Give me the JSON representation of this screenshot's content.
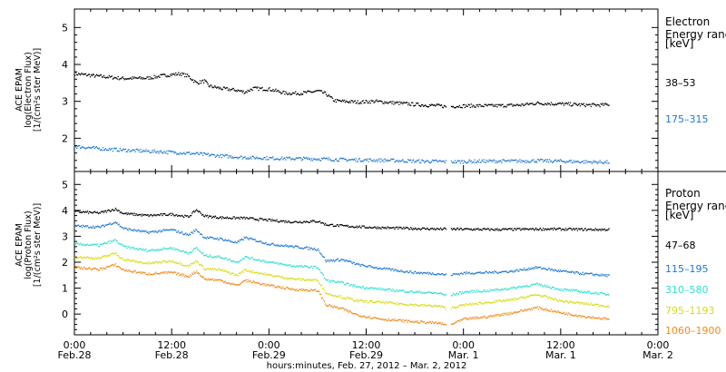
{
  "chart_data": [
    {
      "type": "scatter",
      "panel": "electron",
      "ylabel_lines": [
        "ACE EPAM",
        "log(Electron Flux)",
        "[1/(cm²s ster MeV)]"
      ],
      "ylim": [
        1.1,
        5.5
      ],
      "yticks": [
        2,
        3,
        4,
        5
      ],
      "legend_title_lines": [
        "Electron",
        "Energy range",
        "[keV]"
      ],
      "series": [
        {
          "name": "38–53",
          "color": "#000000",
          "points": [
            [
              0,
              3.75
            ],
            [
              3,
              3.68
            ],
            [
              6,
              3.62
            ],
            [
              9,
              3.63
            ],
            [
              11,
              3.7
            ],
            [
              13,
              3.75
            ],
            [
              14,
              3.68
            ],
            [
              15,
              3.5
            ],
            [
              16,
              3.55
            ],
            [
              16.5,
              3.42
            ],
            [
              18,
              3.35
            ],
            [
              20,
              3.3
            ],
            [
              21,
              3.25
            ],
            [
              22,
              3.35
            ],
            [
              24,
              3.33
            ],
            [
              26,
              3.22
            ],
            [
              28,
              3.22
            ],
            [
              30,
              3.28
            ],
            [
              31,
              3.2
            ],
            [
              32,
              3.02
            ],
            [
              33,
              3.0
            ],
            [
              35,
              2.98
            ],
            [
              37,
              3.0
            ],
            [
              40,
              2.95
            ],
            [
              43,
              2.9
            ],
            [
              45,
              2.88
            ],
            [
              46,
              2.85
            ],
            [
              47,
              2.87
            ],
            [
              49,
              2.88
            ],
            [
              52,
              2.88
            ],
            [
              55,
              2.9
            ],
            [
              57,
              2.95
            ],
            [
              60,
              2.93
            ],
            [
              63,
              2.9
            ],
            [
              65,
              2.9
            ],
            [
              66,
              2.92
            ]
          ]
        },
        {
          "name": "175–315",
          "color": "#1e77d2",
          "points": [
            [
              0,
              1.78
            ],
            [
              3,
              1.72
            ],
            [
              6,
              1.68
            ],
            [
              9,
              1.65
            ],
            [
              12,
              1.62
            ],
            [
              15,
              1.58
            ],
            [
              18,
              1.52
            ],
            [
              21,
              1.48
            ],
            [
              24,
              1.46
            ],
            [
              27,
              1.45
            ],
            [
              30,
              1.44
            ],
            [
              33,
              1.42
            ],
            [
              36,
              1.41
            ],
            [
              39,
              1.4
            ],
            [
              42,
              1.38
            ],
            [
              45,
              1.37
            ],
            [
              46,
              1.36
            ],
            [
              48,
              1.37
            ],
            [
              51,
              1.38
            ],
            [
              54,
              1.38
            ],
            [
              57,
              1.39
            ],
            [
              60,
              1.38
            ],
            [
              63,
              1.36
            ],
            [
              66,
              1.35
            ]
          ]
        }
      ]
    },
    {
      "type": "scatter",
      "panel": "proton",
      "ylabel_lines": [
        "ACE EPAM",
        "log(Proton Flux)",
        "[1/(cm²s ster MeV)]"
      ],
      "ylim": [
        -0.8,
        5.5
      ],
      "yticks": [
        0,
        1,
        2,
        3,
        4,
        5
      ],
      "legend_title_lines": [
        "Proton",
        "Energy range",
        "[keV]"
      ],
      "series": [
        {
          "name": "47–68",
          "color": "#000000",
          "points": [
            [
              0,
              3.95
            ],
            [
              3,
              3.9
            ],
            [
              5,
              4.05
            ],
            [
              6,
              3.88
            ],
            [
              9,
              3.8
            ],
            [
              12,
              3.85
            ],
            [
              14,
              3.75
            ],
            [
              15,
              4.02
            ],
            [
              16,
              3.78
            ],
            [
              18,
              3.72
            ],
            [
              21,
              3.7
            ],
            [
              24,
              3.62
            ],
            [
              27,
              3.55
            ],
            [
              30,
              3.58
            ],
            [
              31,
              3.45
            ],
            [
              33,
              3.4
            ],
            [
              36,
              3.35
            ],
            [
              39,
              3.32
            ],
            [
              42,
              3.3
            ],
            [
              45,
              3.28
            ],
            [
              46,
              3.28
            ],
            [
              49,
              3.27
            ],
            [
              52,
              3.26
            ],
            [
              55,
              3.27
            ],
            [
              58,
              3.28
            ],
            [
              61,
              3.27
            ],
            [
              64,
              3.26
            ],
            [
              66,
              3.26
            ]
          ]
        },
        {
          "name": "115–195",
          "color": "#1e77d2",
          "points": [
            [
              0,
              3.4
            ],
            [
              3,
              3.35
            ],
            [
              5,
              3.55
            ],
            [
              6,
              3.3
            ],
            [
              9,
              3.15
            ],
            [
              12,
              3.25
            ],
            [
              14,
              3.05
            ],
            [
              15,
              3.25
            ],
            [
              16,
              2.95
            ],
            [
              18,
              2.9
            ],
            [
              20,
              2.75
            ],
            [
              21,
              2.95
            ],
            [
              24,
              2.7
            ],
            [
              27,
              2.6
            ],
            [
              30,
              2.5
            ],
            [
              31,
              2.05
            ],
            [
              33,
              2.1
            ],
            [
              35,
              1.9
            ],
            [
              38,
              1.75
            ],
            [
              42,
              1.6
            ],
            [
              45,
              1.55
            ],
            [
              46,
              1.5
            ],
            [
              48,
              1.58
            ],
            [
              51,
              1.6
            ],
            [
              54,
              1.65
            ],
            [
              57,
              1.8
            ],
            [
              60,
              1.65
            ],
            [
              63,
              1.55
            ],
            [
              66,
              1.48
            ]
          ]
        },
        {
          "name": "310–580",
          "color": "#2fe0d0",
          "points": [
            [
              0,
              2.7
            ],
            [
              3,
              2.65
            ],
            [
              5,
              2.85
            ],
            [
              6,
              2.6
            ],
            [
              9,
              2.45
            ],
            [
              12,
              2.55
            ],
            [
              14,
              2.35
            ],
            [
              15,
              2.55
            ],
            [
              16,
              2.25
            ],
            [
              18,
              2.2
            ],
            [
              20,
              2.0
            ],
            [
              21,
              2.2
            ],
            [
              24,
              2.0
            ],
            [
              27,
              1.85
            ],
            [
              30,
              1.8
            ],
            [
              31,
              1.3
            ],
            [
              33,
              1.2
            ],
            [
              35,
              1.05
            ],
            [
              38,
              0.95
            ],
            [
              42,
              0.85
            ],
            [
              45,
              0.8
            ],
            [
              46,
              0.7
            ],
            [
              48,
              0.85
            ],
            [
              51,
              0.9
            ],
            [
              54,
              1.0
            ],
            [
              57,
              1.15
            ],
            [
              60,
              0.95
            ],
            [
              63,
              0.85
            ],
            [
              66,
              0.75
            ]
          ]
        },
        {
          "name": "795–1193",
          "color": "#d8dc10",
          "points": [
            [
              0,
              2.2
            ],
            [
              3,
              2.15
            ],
            [
              5,
              2.35
            ],
            [
              6,
              2.1
            ],
            [
              9,
              1.95
            ],
            [
              12,
              2.05
            ],
            [
              14,
              1.85
            ],
            [
              15,
              2.05
            ],
            [
              16,
              1.75
            ],
            [
              18,
              1.7
            ],
            [
              20,
              1.5
            ],
            [
              21,
              1.7
            ],
            [
              24,
              1.5
            ],
            [
              27,
              1.35
            ],
            [
              30,
              1.3
            ],
            [
              31,
              0.8
            ],
            [
              33,
              0.65
            ],
            [
              35,
              0.5
            ],
            [
              38,
              0.45
            ],
            [
              42,
              0.35
            ],
            [
              45,
              0.3
            ],
            [
              46,
              0.2
            ],
            [
              48,
              0.35
            ],
            [
              51,
              0.45
            ],
            [
              54,
              0.55
            ],
            [
              57,
              0.75
            ],
            [
              60,
              0.5
            ],
            [
              63,
              0.4
            ],
            [
              66,
              0.3
            ]
          ]
        },
        {
          "name": "1060–1900",
          "color": "#f08a1a",
          "points": [
            [
              0,
              1.8
            ],
            [
              3,
              1.72
            ],
            [
              5,
              1.9
            ],
            [
              6,
              1.7
            ],
            [
              9,
              1.55
            ],
            [
              12,
              1.6
            ],
            [
              14,
              1.45
            ],
            [
              15,
              1.65
            ],
            [
              16,
              1.35
            ],
            [
              18,
              1.3
            ],
            [
              20,
              1.1
            ],
            [
              21,
              1.3
            ],
            [
              24,
              1.1
            ],
            [
              27,
              0.95
            ],
            [
              30,
              0.9
            ],
            [
              31,
              0.35
            ],
            [
              33,
              0.2
            ],
            [
              35,
              -0.05
            ],
            [
              38,
              -0.2
            ],
            [
              42,
              -0.3
            ],
            [
              45,
              -0.35
            ],
            [
              46,
              -0.45
            ],
            [
              48,
              -0.2
            ],
            [
              51,
              -0.1
            ],
            [
              54,
              0.05
            ],
            [
              57,
              0.25
            ],
            [
              60,
              0.05
            ],
            [
              63,
              -0.1
            ],
            [
              66,
              -0.2
            ]
          ]
        }
      ]
    }
  ],
  "x_axis": {
    "xlim": [
      0,
      72
    ],
    "ticks": [
      {
        "hours": 0,
        "time": "0:00",
        "date": "Feb.28"
      },
      {
        "hours": 12,
        "time": "12:00",
        "date": "Feb.28"
      },
      {
        "hours": 24,
        "time": "0:00",
        "date": "Feb.29"
      },
      {
        "hours": 36,
        "time": "12:00",
        "date": "Feb.29"
      },
      {
        "hours": 48,
        "time": "0:00",
        "date": "Mar. 1"
      },
      {
        "hours": 60,
        "time": "12:00",
        "date": "Mar. 1"
      },
      {
        "hours": 72,
        "time": "0:00",
        "date": "Mar. 2"
      }
    ],
    "label": "hours:minutes, Feb. 27, 2012 – Mar. 2, 2012"
  }
}
